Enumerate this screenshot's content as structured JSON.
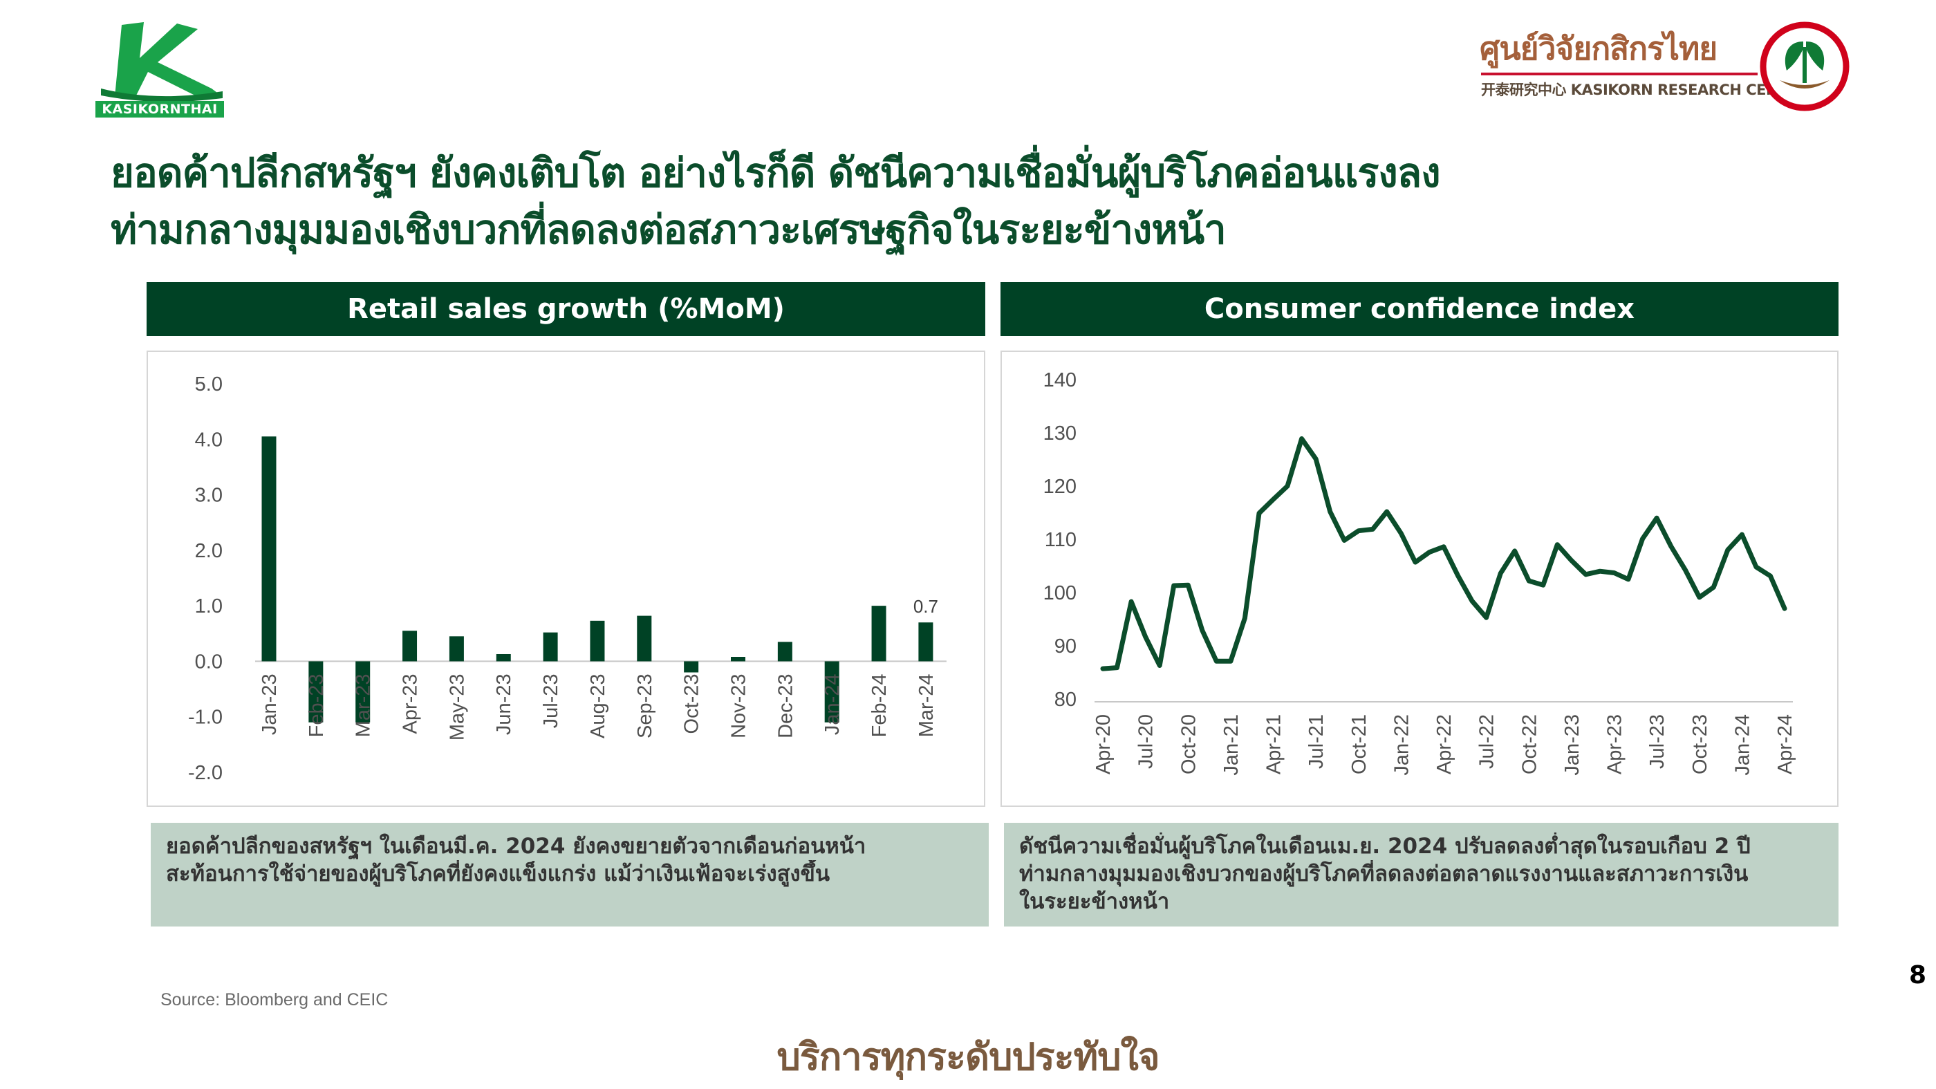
{
  "logos": {
    "left_wordmark": "KASIKORNTHAI",
    "right_thai_name": "ศูนย์วิจัยกสิกรไทย",
    "right_english_name": "开泰研究中心 KASIKORN RESEARCH CENTER"
  },
  "headline": {
    "line1": "ยอดค้าปลีกสหรัฐฯ ยังคงเติบโต อย่างไรก็ดี ดัชนีความเชื่อมั่นผู้บริโภคอ่อนแรงลง",
    "line2": "ท่ามกลางมุมมองเชิงบวกที่ลดลงต่อสภาวะเศรษฐกิจในระยะข้างหน้า"
  },
  "colors": {
    "brand_green": "#004225",
    "line_green": "#0b4d2b",
    "note_bg": "#bfd2c7",
    "accent_red": "#c8102e"
  },
  "chart_data": [
    {
      "type": "bar",
      "title": "Retail sales growth (%MoM)",
      "categories": [
        "Jan-23",
        "Feb-23",
        "Mar-23",
        "Apr-23",
        "May-23",
        "Jun-23",
        "Jul-23",
        "Aug-23",
        "Sep-23",
        "Oct-23",
        "Nov-23",
        "Dec-23",
        "Jan-24",
        "Feb-24",
        "Mar-24"
      ],
      "values": [
        4.05,
        -1.1,
        -1.1,
        0.55,
        0.45,
        0.13,
        0.52,
        0.73,
        0.82,
        -0.2,
        0.08,
        0.35,
        -1.1,
        1.0,
        0.7
      ],
      "data_labels": [
        {
          "category": "Mar-24",
          "text": "0.7"
        }
      ],
      "yticks": [
        "5.0",
        "4.0",
        "3.0",
        "2.0",
        "1.0",
        "0.0",
        "-1.0",
        "-2.0"
      ],
      "ylim": [
        -2.0,
        5.0
      ],
      "grid": false,
      "legend": "none"
    },
    {
      "type": "line",
      "title": "Consumer confidence index",
      "x": [
        "Apr-20",
        "May-20",
        "Jun-20",
        "Jul-20",
        "Aug-20",
        "Sep-20",
        "Oct-20",
        "Nov-20",
        "Dec-20",
        "Jan-21",
        "Feb-21",
        "Mar-21",
        "Apr-21",
        "May-21",
        "Jun-21",
        "Jul-21",
        "Aug-21",
        "Sep-21",
        "Oct-21",
        "Nov-21",
        "Dec-21",
        "Jan-22",
        "Feb-22",
        "Mar-22",
        "Apr-22",
        "May-22",
        "Jun-22",
        "Jul-22",
        "Aug-22",
        "Sep-22",
        "Oct-22",
        "Nov-22",
        "Dec-22",
        "Jan-23",
        "Feb-23",
        "Mar-23",
        "Apr-23",
        "May-23",
        "Jun-23",
        "Jul-23",
        "Aug-23",
        "Sep-23",
        "Oct-23",
        "Nov-23",
        "Dec-23",
        "Jan-24",
        "Feb-24",
        "Mar-24",
        "Apr-24"
      ],
      "values": [
        85.7,
        85.9,
        98.3,
        91.7,
        86.3,
        101.3,
        101.4,
        92.9,
        87.1,
        87.1,
        95.2,
        114.9,
        117.5,
        120.0,
        128.9,
        125.1,
        115.2,
        109.8,
        111.6,
        111.9,
        115.2,
        111.1,
        105.7,
        107.6,
        108.6,
        103.2,
        98.4,
        95.3,
        103.6,
        107.8,
        102.2,
        101.4,
        109.0,
        106.0,
        103.4,
        104.0,
        103.7,
        102.5,
        110.1,
        114.0,
        108.7,
        104.3,
        99.1,
        101.0,
        108.0,
        110.9,
        104.8,
        103.1,
        97.0
      ],
      "xticks": [
        "Apr-20",
        "Jul-20",
        "Oct-20",
        "Jan-21",
        "Apr-21",
        "Jul-21",
        "Oct-21",
        "Jan-22",
        "Apr-22",
        "Jul-22",
        "Oct-22",
        "Jan-23",
        "Apr-23",
        "Jul-23",
        "Oct-23",
        "Jan-24",
        "Apr-24"
      ],
      "yticks": [
        "140",
        "130",
        "120",
        "110",
        "100",
        "90",
        "80"
      ],
      "ylim": [
        80,
        140
      ],
      "grid": false,
      "legend": "none"
    }
  ],
  "notes": {
    "left_line1": "ยอดค้าปลีกของสหรัฐฯ ในเดือนมี.ค. 2024 ยังคงขยายตัวจากเดือนก่อนหน้า",
    "left_line2": "สะท้อนการใช้จ่ายของผู้บริโภคที่ยังคงแข็งแกร่ง แม้ว่าเงินเฟ้อจะเร่งสูงขึ้น",
    "right_line1": "ดัชนีความเชื่อมั่นผู้บริโภคในเดือนเม.ย. 2024  ปรับลดลงต่ำสุดในรอบเกือบ 2  ปี",
    "right_line2": "ท่ามกลางมุมมองเชิงบวกของผู้บริโภคที่ลดลงต่อตลาดแรงงานและสภาวะการเงิน",
    "right_line3": "ในระยะข้างหน้า"
  },
  "footer": {
    "source": "Source: Bloomberg and CEIC",
    "page_number": "8",
    "slogan": "บริการทุกระดับประทับใจ"
  }
}
